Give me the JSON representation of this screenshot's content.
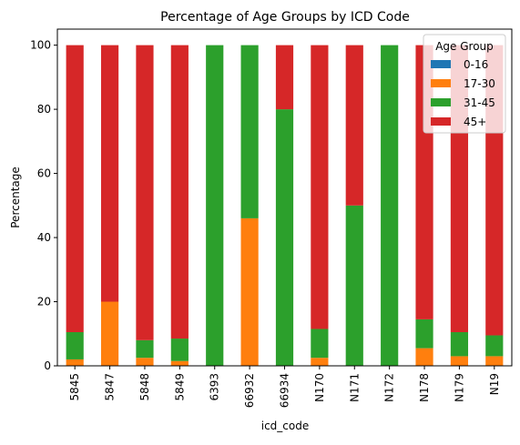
{
  "chart_data": {
    "type": "bar",
    "stacked": true,
    "title": "Percentage of Age Groups by ICD Code",
    "xlabel": "icd_code",
    "ylabel": "Percentage",
    "ylim": [
      0,
      105
    ],
    "yticks": [
      0,
      20,
      40,
      60,
      80,
      100
    ],
    "grid": false,
    "legend": {
      "title": "Age Group",
      "placement": "top-right"
    },
    "categories": [
      "5845",
      "5847",
      "5848",
      "5849",
      "6393",
      "66932",
      "66934",
      "N170",
      "N171",
      "N172",
      "N178",
      "N179",
      "N19"
    ],
    "series": [
      {
        "name": "0-16",
        "color": "#1f77b4",
        "values": [
          0,
          0,
          0,
          0,
          0,
          0,
          0,
          0,
          0,
          0,
          0,
          0,
          0
        ]
      },
      {
        "name": "17-30",
        "color": "#ff7f0e",
        "values": [
          2,
          20,
          2.5,
          1.5,
          0,
          46,
          0,
          2.5,
          0,
          0,
          5.5,
          3,
          3
        ]
      },
      {
        "name": "31-45",
        "color": "#2ca02c",
        "values": [
          8.5,
          0,
          5.5,
          7,
          100,
          54,
          80,
          9,
          50,
          100,
          9,
          7.5,
          6.5
        ]
      },
      {
        "name": "45+",
        "color": "#d62728",
        "values": [
          89.5,
          80,
          92,
          91.5,
          0,
          0,
          20,
          88.5,
          50,
          0,
          85.5,
          89.5,
          90.5
        ]
      }
    ]
  }
}
